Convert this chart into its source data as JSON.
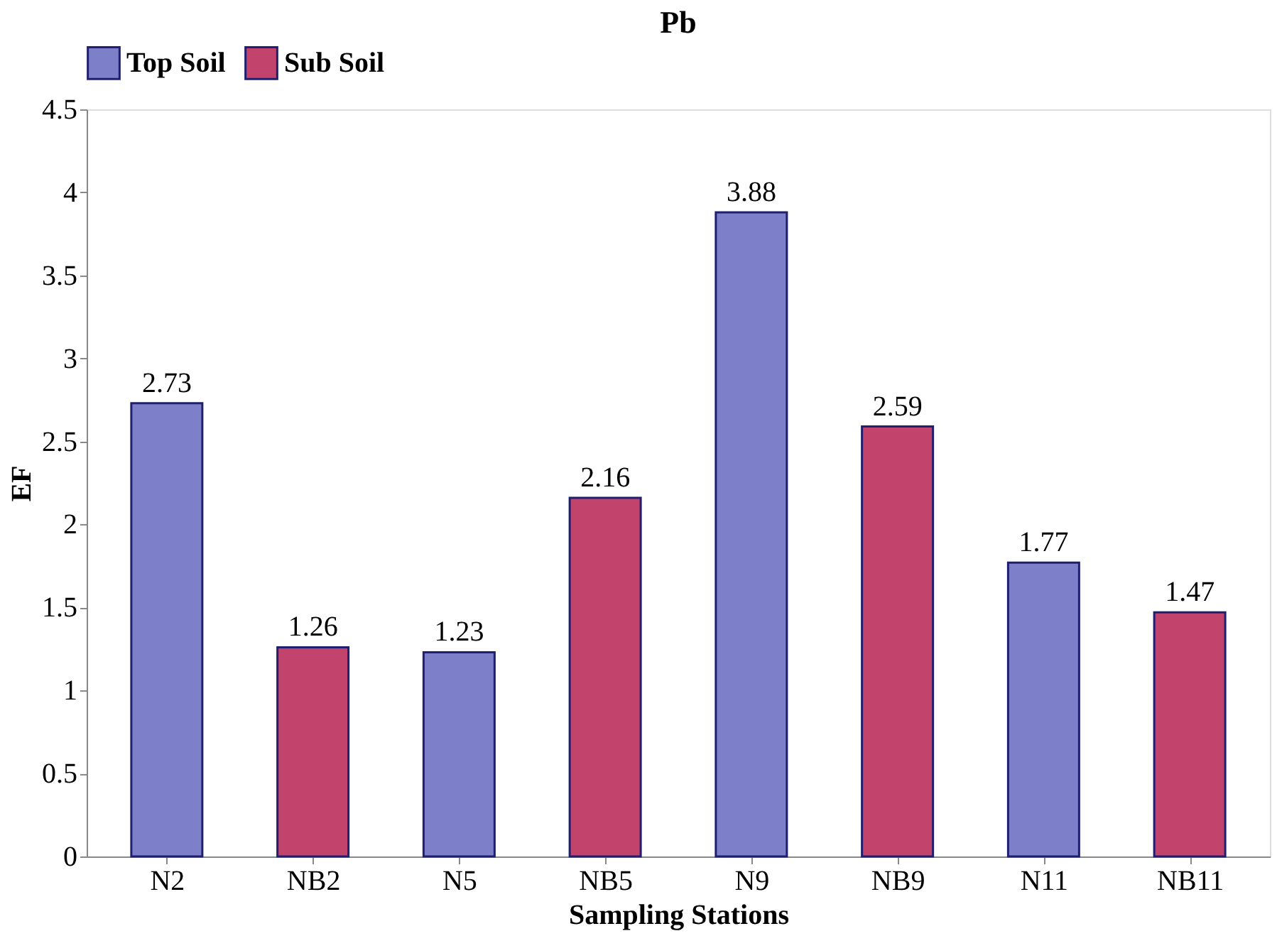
{
  "chart_data": {
    "type": "bar",
    "title": "Pb",
    "xlabel": "Sampling Stations",
    "ylabel": "EF",
    "categories": [
      "N2",
      "NB2",
      "N5",
      "NB5",
      "N9",
      "NB9",
      "N11",
      "NB11"
    ],
    "series": [
      {
        "name": "Top Soil",
        "color": "#7d80c8",
        "values": [
          2.73,
          null,
          1.23,
          null,
          3.88,
          null,
          1.77,
          null
        ]
      },
      {
        "name": "Sub Soil",
        "color": "#c2446c",
        "values": [
          null,
          1.26,
          null,
          2.16,
          null,
          2.59,
          null,
          1.47
        ]
      }
    ],
    "ylim": [
      0,
      4.5
    ],
    "yticks": [
      0,
      0.5,
      1,
      1.5,
      2,
      2.5,
      3,
      3.5,
      4,
      4.5
    ],
    "data_labels": true,
    "grid": false,
    "legend": "top"
  }
}
